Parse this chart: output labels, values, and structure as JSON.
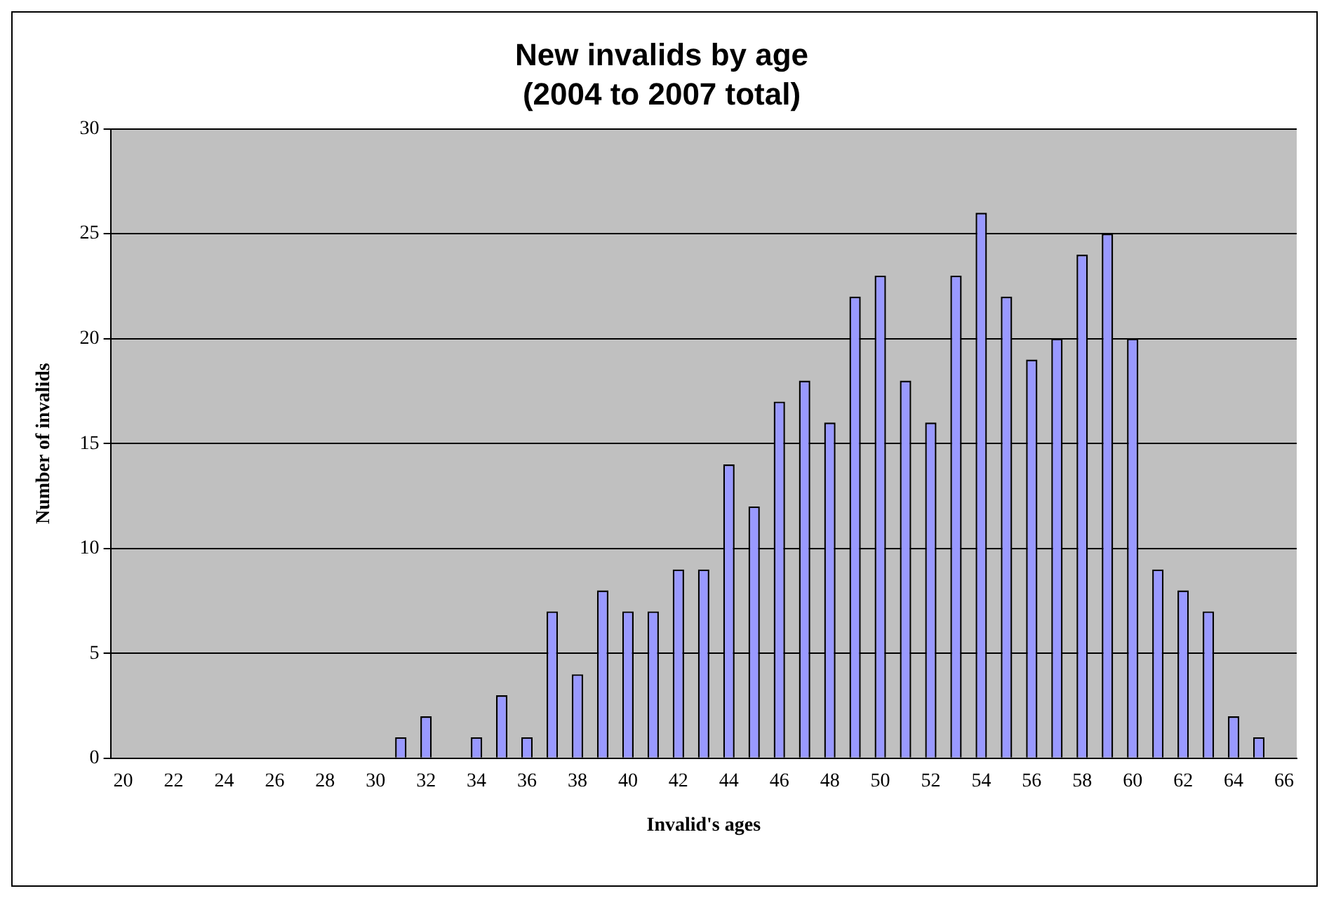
{
  "chart_data": {
    "type": "bar",
    "title": "New invalids by age",
    "subtitle": "(2004 to 2007 total)",
    "xlabel": "Invalid's ages",
    "ylabel": "Number of invalids",
    "categories": [
      "20",
      null,
      "22",
      null,
      "24",
      null,
      "26",
      null,
      "28",
      null,
      "30",
      null,
      "32",
      null,
      "34",
      null,
      "36",
      null,
      "38",
      null,
      "40",
      null,
      "42",
      null,
      "44",
      null,
      "46",
      null,
      "48",
      null,
      "50",
      null,
      "52",
      null,
      "54",
      null,
      "56",
      null,
      "58",
      null,
      "60",
      null,
      "62",
      null,
      "64",
      null,
      "66"
    ],
    "values": [
      0,
      0,
      0,
      0,
      0,
      0,
      0,
      0,
      0,
      0,
      0,
      1,
      2,
      0,
      1,
      3,
      1,
      7,
      4,
      8,
      7,
      7,
      9,
      9,
      14,
      12,
      17,
      18,
      16,
      22,
      23,
      18,
      16,
      23,
      26,
      22,
      19,
      20,
      24,
      25,
      20,
      9,
      8,
      7,
      2,
      1,
      0
    ],
    "color": "#9999ff",
    "ylim": [
      0,
      30
    ],
    "yticks": [
      0,
      5,
      10,
      15,
      20,
      25,
      30
    ],
    "grid": "y",
    "legend": false
  }
}
